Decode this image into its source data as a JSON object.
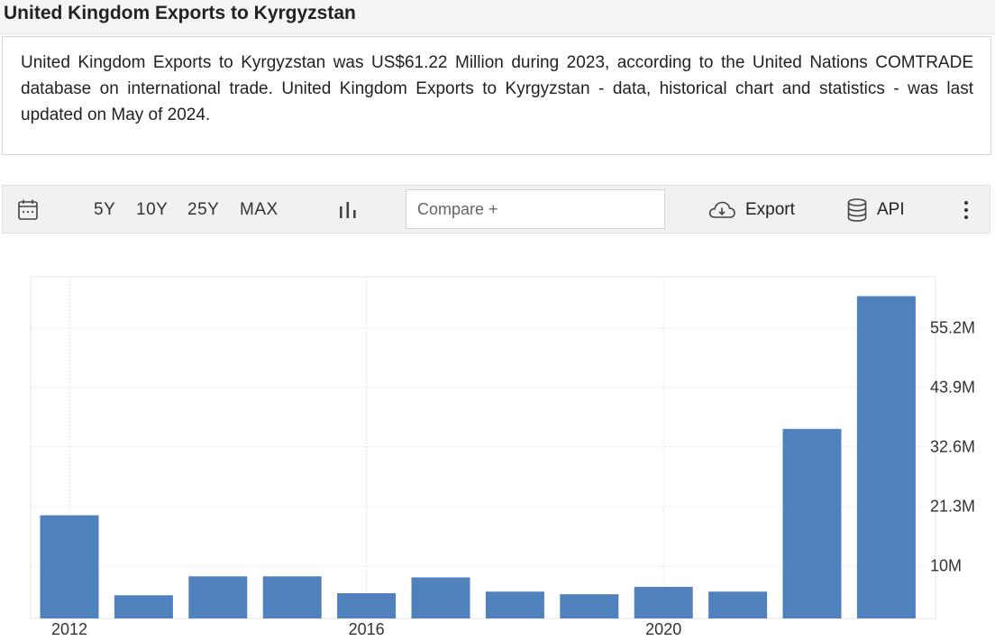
{
  "page": {
    "title": "United Kingdom Exports to Kyrgyzstan",
    "description": "United Kingdom Exports to Kyrgyzstan was US$61.22 Million during 2023, according to the United Nations COMTRADE database on international trade. United Kingdom Exports to Kyrgyzstan - data, historical chart and statistics - was last updated on May of 2024."
  },
  "toolbar": {
    "calendar_icon": "calendar-icon",
    "ranges": [
      "5Y",
      "10Y",
      "25Y",
      "MAX"
    ],
    "chart_type_icon": "bar-chart-icon",
    "compare_placeholder": "Compare +",
    "export_label": "Export",
    "export_icon": "cloud-download-icon",
    "api_label": "API",
    "api_icon": "database-icon",
    "more_icon": "more-vertical-icon"
  },
  "colors": {
    "bar": "#4f81bd",
    "grid": "#e6e6e6"
  },
  "chart_data": {
    "type": "bar",
    "categories": [
      "2012",
      "2013",
      "2014",
      "2015",
      "2016",
      "2017",
      "2018",
      "2019",
      "2020",
      "2021",
      "2022",
      "2023"
    ],
    "values": [
      19.6,
      4.4,
      8.0,
      8.0,
      4.8,
      7.8,
      5.1,
      4.6,
      6.0,
      5.1,
      36.0,
      61.22
    ],
    "x_tick_labels": [
      "2012",
      "2016",
      "2020"
    ],
    "y_tick_values": [
      10,
      21.3,
      32.6,
      43.9,
      55.2
    ],
    "y_tick_labels": [
      "10M",
      "21.3M",
      "32.6M",
      "43.9M",
      "55.2M"
    ],
    "ylim": [
      0,
      64.9
    ],
    "y_axis_position": "right",
    "grid": true,
    "title": "",
    "xlabel": "",
    "ylabel": ""
  }
}
